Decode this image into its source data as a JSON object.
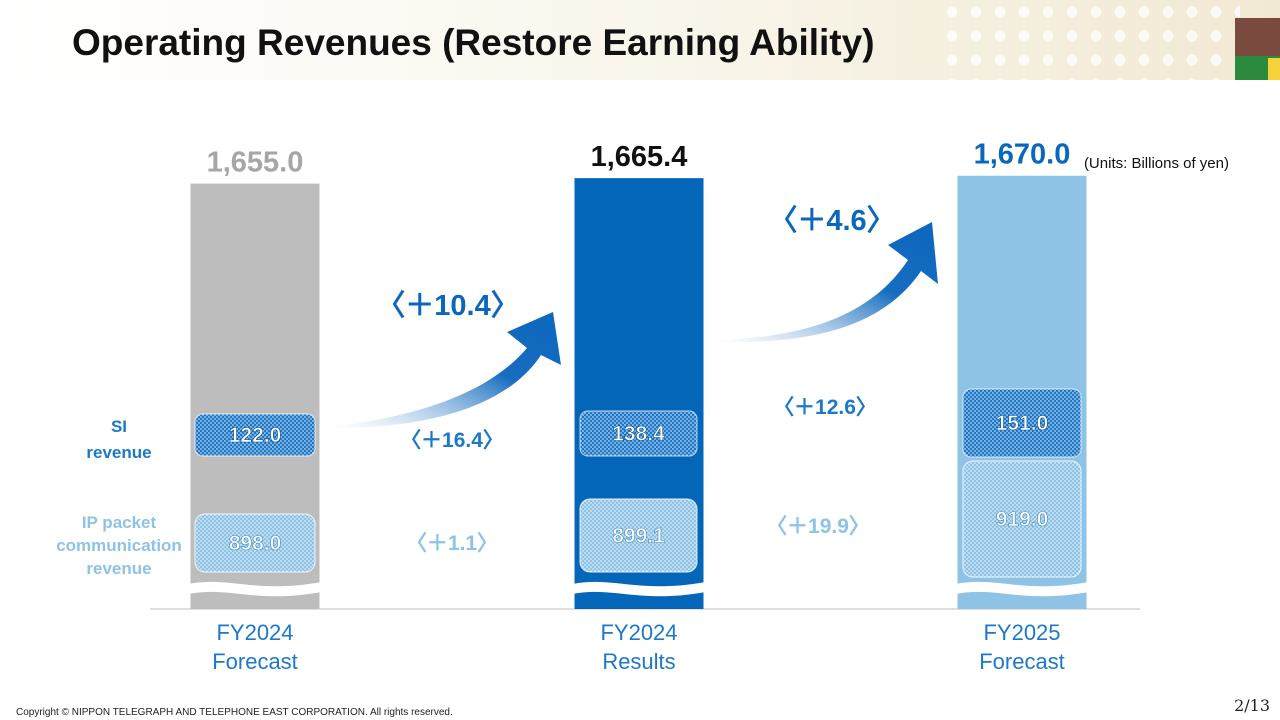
{
  "slide": {
    "title": "Operating Revenues (Restore Earning Ability)",
    "units": "(Units: Billions of yen)",
    "copyright": "Copyright © NIPPON TELEGRAPH AND TELEPHONE EAST CORPORATION. All rights reserved.",
    "page": "2/13"
  },
  "chart_data": {
    "type": "bar",
    "categories": [
      [
        "FY2024",
        "Forecast"
      ],
      [
        "FY2024",
        "Results"
      ],
      [
        "FY2025",
        "Forecast"
      ]
    ],
    "totals": [
      "1,655.0",
      "1,665.4",
      "1,670.0"
    ],
    "total_values": [
      1655.0,
      1665.4,
      1670.0
    ],
    "series": [
      {
        "name": "SI revenue",
        "label_lines": [
          "SI",
          "revenue"
        ],
        "values": [
          122.0,
          138.4,
          151.0
        ],
        "labels": [
          "122.0",
          "138.4",
          "151.0"
        ]
      },
      {
        "name": "IP packet communication revenue",
        "label_lines": [
          "IP packet",
          "communication",
          "revenue"
        ],
        "values": [
          898.0,
          899.1,
          919.0
        ],
        "labels": [
          "898.0",
          "899.1",
          "919.0"
        ]
      }
    ],
    "changes": {
      "total": [
        "〈＋10.4〉",
        "〈＋4.6〉"
      ],
      "si": [
        "〈＋16.4〉",
        "〈＋12.6〉"
      ],
      "ip": [
        "〈＋1.1〉",
        "〈＋19.9〉"
      ]
    },
    "colors": {
      "bars": [
        "#bdbdbd",
        "#0366b8",
        "#8ec3e6"
      ],
      "totals": [
        "#a6a6a6",
        "#111111",
        "#0b66bd"
      ],
      "arrow": "#0b66bd",
      "si": "#1e78c8",
      "ip": "#8ec3e6",
      "category_text": "#1e78c8",
      "axis": "#bfbfbf"
    },
    "axis_break": true
  }
}
